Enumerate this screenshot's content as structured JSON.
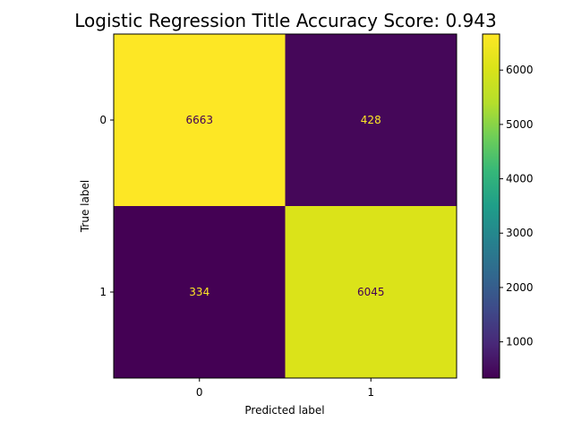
{
  "chart_data": {
    "type": "heatmap",
    "title": "Logistic Regression Title Accuracy Score: 0.943",
    "xlabel": "Predicted label",
    "ylabel": "True label",
    "x_categories": [
      "0",
      "1"
    ],
    "y_categories": [
      "0",
      "1"
    ],
    "matrix": [
      [
        6663,
        428
      ],
      [
        334,
        6045
      ]
    ],
    "colormap": "viridis",
    "colorbar": {
      "range": [
        334,
        6663
      ],
      "ticks": [
        1000,
        2000,
        3000,
        4000,
        5000,
        6000
      ],
      "tick_labels": [
        "1000",
        "2000",
        "3000",
        "4000",
        "5000",
        "6000"
      ]
    },
    "cell_text_colors": {
      "dark_cell": "#fde725",
      "light_cell": "#440154"
    }
  }
}
